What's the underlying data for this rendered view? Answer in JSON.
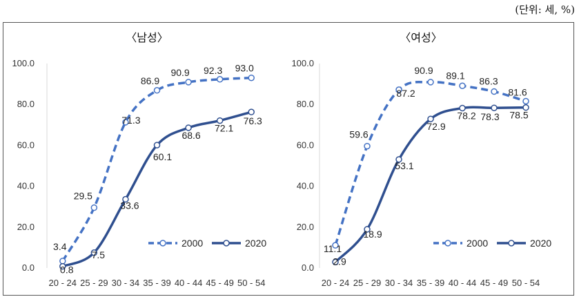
{
  "unit_note": "(단위: 세, %)",
  "colors": {
    "y2000": "#4472C4",
    "y2020": "#2F4F8F",
    "axis": "#d9d9d9"
  },
  "chart_data": [
    {
      "type": "line",
      "title": "〈남성〉",
      "categories": [
        "20 - 24",
        "25 - 29",
        "30 - 34",
        "35 - 39",
        "40 - 44",
        "45 - 49",
        "50 - 54"
      ],
      "ylim": [
        0,
        100
      ],
      "yticks": [
        "0.0",
        "20.0",
        "40.0",
        "60.0",
        "80.0",
        "100.0"
      ],
      "series": [
        {
          "name": "2000",
          "values": [
            3.4,
            29.5,
            71.3,
            86.9,
            90.9,
            92.3,
            93.0
          ],
          "labels": [
            "3.4",
            "29.5",
            "71.3",
            "86.9",
            "90.9",
            "92.3",
            "93.0"
          ]
        },
        {
          "name": "2020",
          "values": [
            0.8,
            7.5,
            33.6,
            60.1,
            68.6,
            72.1,
            76.3
          ],
          "labels": [
            "0.8",
            "7.5",
            "33.6",
            "60.1",
            "68.6",
            "72.1",
            "76.3"
          ]
        }
      ]
    },
    {
      "type": "line",
      "title": "〈여성〉",
      "categories": [
        "20 - 24",
        "25 - 29",
        "30 - 34",
        "35 - 39",
        "40 - 44",
        "45 - 49",
        "50 - 54"
      ],
      "ylim": [
        0,
        100
      ],
      "yticks": [
        "0.0",
        "20.0",
        "40.0",
        "60.0",
        "80.0",
        "100.0"
      ],
      "series": [
        {
          "name": "2000",
          "values": [
            11.1,
            59.6,
            87.2,
            90.9,
            89.1,
            86.3,
            81.6
          ],
          "labels": [
            "11.1",
            "59.6",
            "87.2",
            "90.9",
            "89.1",
            "86.3",
            "81.6"
          ]
        },
        {
          "name": "2020",
          "values": [
            2.9,
            18.9,
            53.1,
            72.9,
            78.2,
            78.3,
            78.5
          ],
          "labels": [
            "2.9",
            "18.9",
            "53.1",
            "72.9",
            "78.2",
            "78.3",
            "78.5"
          ]
        }
      ]
    }
  ]
}
